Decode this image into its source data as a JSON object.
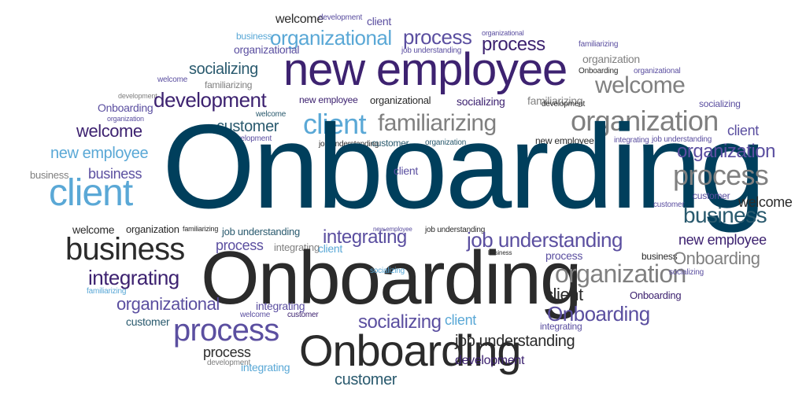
{
  "palette": {
    "navy": "#003f5c",
    "teal": "#2a5a6e",
    "purple": "#3d2270",
    "violet": "#5b4fa0",
    "sky": "#5aa8d6",
    "dark": "#2b2b2b",
    "grey": "#808080"
  },
  "words": [
    {
      "t": "welcome",
      "c": "dark"
    },
    {
      "t": "development",
      "c": "violet"
    },
    {
      "t": "client",
      "c": "violet"
    },
    {
      "t": "business",
      "c": "sky"
    },
    {
      "t": "organizational",
      "c": "sky"
    },
    {
      "t": "process",
      "c": "violet"
    },
    {
      "t": "organizational",
      "c": "violet"
    },
    {
      "t": "process",
      "c": "purple"
    },
    {
      "t": "job understanding",
      "c": "violet"
    },
    {
      "t": "organizational",
      "c": "violet"
    },
    {
      "t": "familiarizing",
      "c": "violet"
    },
    {
      "t": "organization",
      "c": "grey"
    },
    {
      "t": "new employee",
      "c": "purple"
    },
    {
      "t": "Onboarding",
      "c": "dark"
    },
    {
      "t": "organizational",
      "c": "violet"
    },
    {
      "t": "socializing",
      "c": "teal"
    },
    {
      "t": "welcome",
      "c": "violet"
    },
    {
      "t": "familiarizing",
      "c": "grey"
    },
    {
      "t": "development",
      "c": "grey"
    },
    {
      "t": "development",
      "c": "purple"
    },
    {
      "t": "welcome",
      "c": "grey"
    },
    {
      "t": "new employee",
      "c": "purple"
    },
    {
      "t": "organizational",
      "c": "dark"
    },
    {
      "t": "socializing",
      "c": "purple"
    },
    {
      "t": "familiarizing",
      "c": "grey"
    },
    {
      "t": "development",
      "c": "dark"
    },
    {
      "t": "socializing",
      "c": "violet"
    },
    {
      "t": "Onboarding",
      "c": "violet"
    },
    {
      "t": "welcome",
      "c": "teal"
    },
    {
      "t": "organization",
      "c": "violet"
    },
    {
      "t": "client",
      "c": "sky"
    },
    {
      "t": "familiarizing",
      "c": "grey"
    },
    {
      "t": "organization",
      "c": "grey"
    },
    {
      "t": "client",
      "c": "violet"
    },
    {
      "t": "customer",
      "c": "teal"
    },
    {
      "t": "welcome",
      "c": "purple"
    },
    {
      "t": "development",
      "c": "violet"
    },
    {
      "t": "job understanding",
      "c": "dark"
    },
    {
      "t": "customer",
      "c": "teal"
    },
    {
      "t": "organization",
      "c": "teal"
    },
    {
      "t": "new employee",
      "c": "dark"
    },
    {
      "t": "integrating",
      "c": "violet"
    },
    {
      "t": "job understanding",
      "c": "violet"
    },
    {
      "t": "new employee",
      "c": "sky"
    },
    {
      "t": "Onboarding",
      "c": "navy"
    },
    {
      "t": "organization",
      "c": "violet"
    },
    {
      "t": "business",
      "c": "grey"
    },
    {
      "t": "business",
      "c": "violet"
    },
    {
      "t": "client",
      "c": "violet"
    },
    {
      "t": "process",
      "c": "grey"
    },
    {
      "t": "client",
      "c": "sky"
    },
    {
      "t": "customer",
      "c": "violet"
    },
    {
      "t": "welcome",
      "c": "dark"
    },
    {
      "t": "customer",
      "c": "violet"
    },
    {
      "t": "business",
      "c": "teal"
    },
    {
      "t": "welcome",
      "c": "dark"
    },
    {
      "t": "organization",
      "c": "dark"
    },
    {
      "t": "familiarizing",
      "c": "dark"
    },
    {
      "t": "job understanding",
      "c": "teal"
    },
    {
      "t": "integrating",
      "c": "violet"
    },
    {
      "t": "new employee",
      "c": "violet"
    },
    {
      "t": "job understanding",
      "c": "dark"
    },
    {
      "t": "new employee",
      "c": "purple"
    },
    {
      "t": "business",
      "c": "dark"
    },
    {
      "t": "process",
      "c": "violet"
    },
    {
      "t": "integrating",
      "c": "grey"
    },
    {
      "t": "client",
      "c": "sky"
    },
    {
      "t": "job understanding",
      "c": "violet"
    },
    {
      "t": "business",
      "c": "dark"
    },
    {
      "t": "process",
      "c": "violet"
    },
    {
      "t": "business",
      "c": "dark"
    },
    {
      "t": "Onboarding",
      "c": "grey"
    },
    {
      "t": "integrating",
      "c": "purple"
    },
    {
      "t": "Onboarding",
      "c": "dark"
    },
    {
      "t": "socializing",
      "c": "sky"
    },
    {
      "t": "organization",
      "c": "grey"
    },
    {
      "t": "socializing",
      "c": "violet"
    },
    {
      "t": "familiarizing",
      "c": "sky"
    },
    {
      "t": "client",
      "c": "dark"
    },
    {
      "t": "Onboarding",
      "c": "purple"
    },
    {
      "t": "organizational",
      "c": "violet"
    },
    {
      "t": "welcome",
      "c": "violet"
    },
    {
      "t": "integrating",
      "c": "violet"
    },
    {
      "t": "customer",
      "c": "purple"
    },
    {
      "t": "socializing",
      "c": "violet"
    },
    {
      "t": "client",
      "c": "sky"
    },
    {
      "t": "Onboarding",
      "c": "violet"
    },
    {
      "t": "customer",
      "c": "teal"
    },
    {
      "t": "process",
      "c": "violet"
    },
    {
      "t": "integrating",
      "c": "violet"
    },
    {
      "t": "job understanding",
      "c": "dark"
    },
    {
      "t": "process",
      "c": "dark"
    },
    {
      "t": "Onboarding",
      "c": "dark"
    },
    {
      "t": "development",
      "c": "grey"
    },
    {
      "t": "integrating",
      "c": "sky"
    },
    {
      "t": "development",
      "c": "purple"
    },
    {
      "t": "customer",
      "c": "teal"
    }
  ]
}
